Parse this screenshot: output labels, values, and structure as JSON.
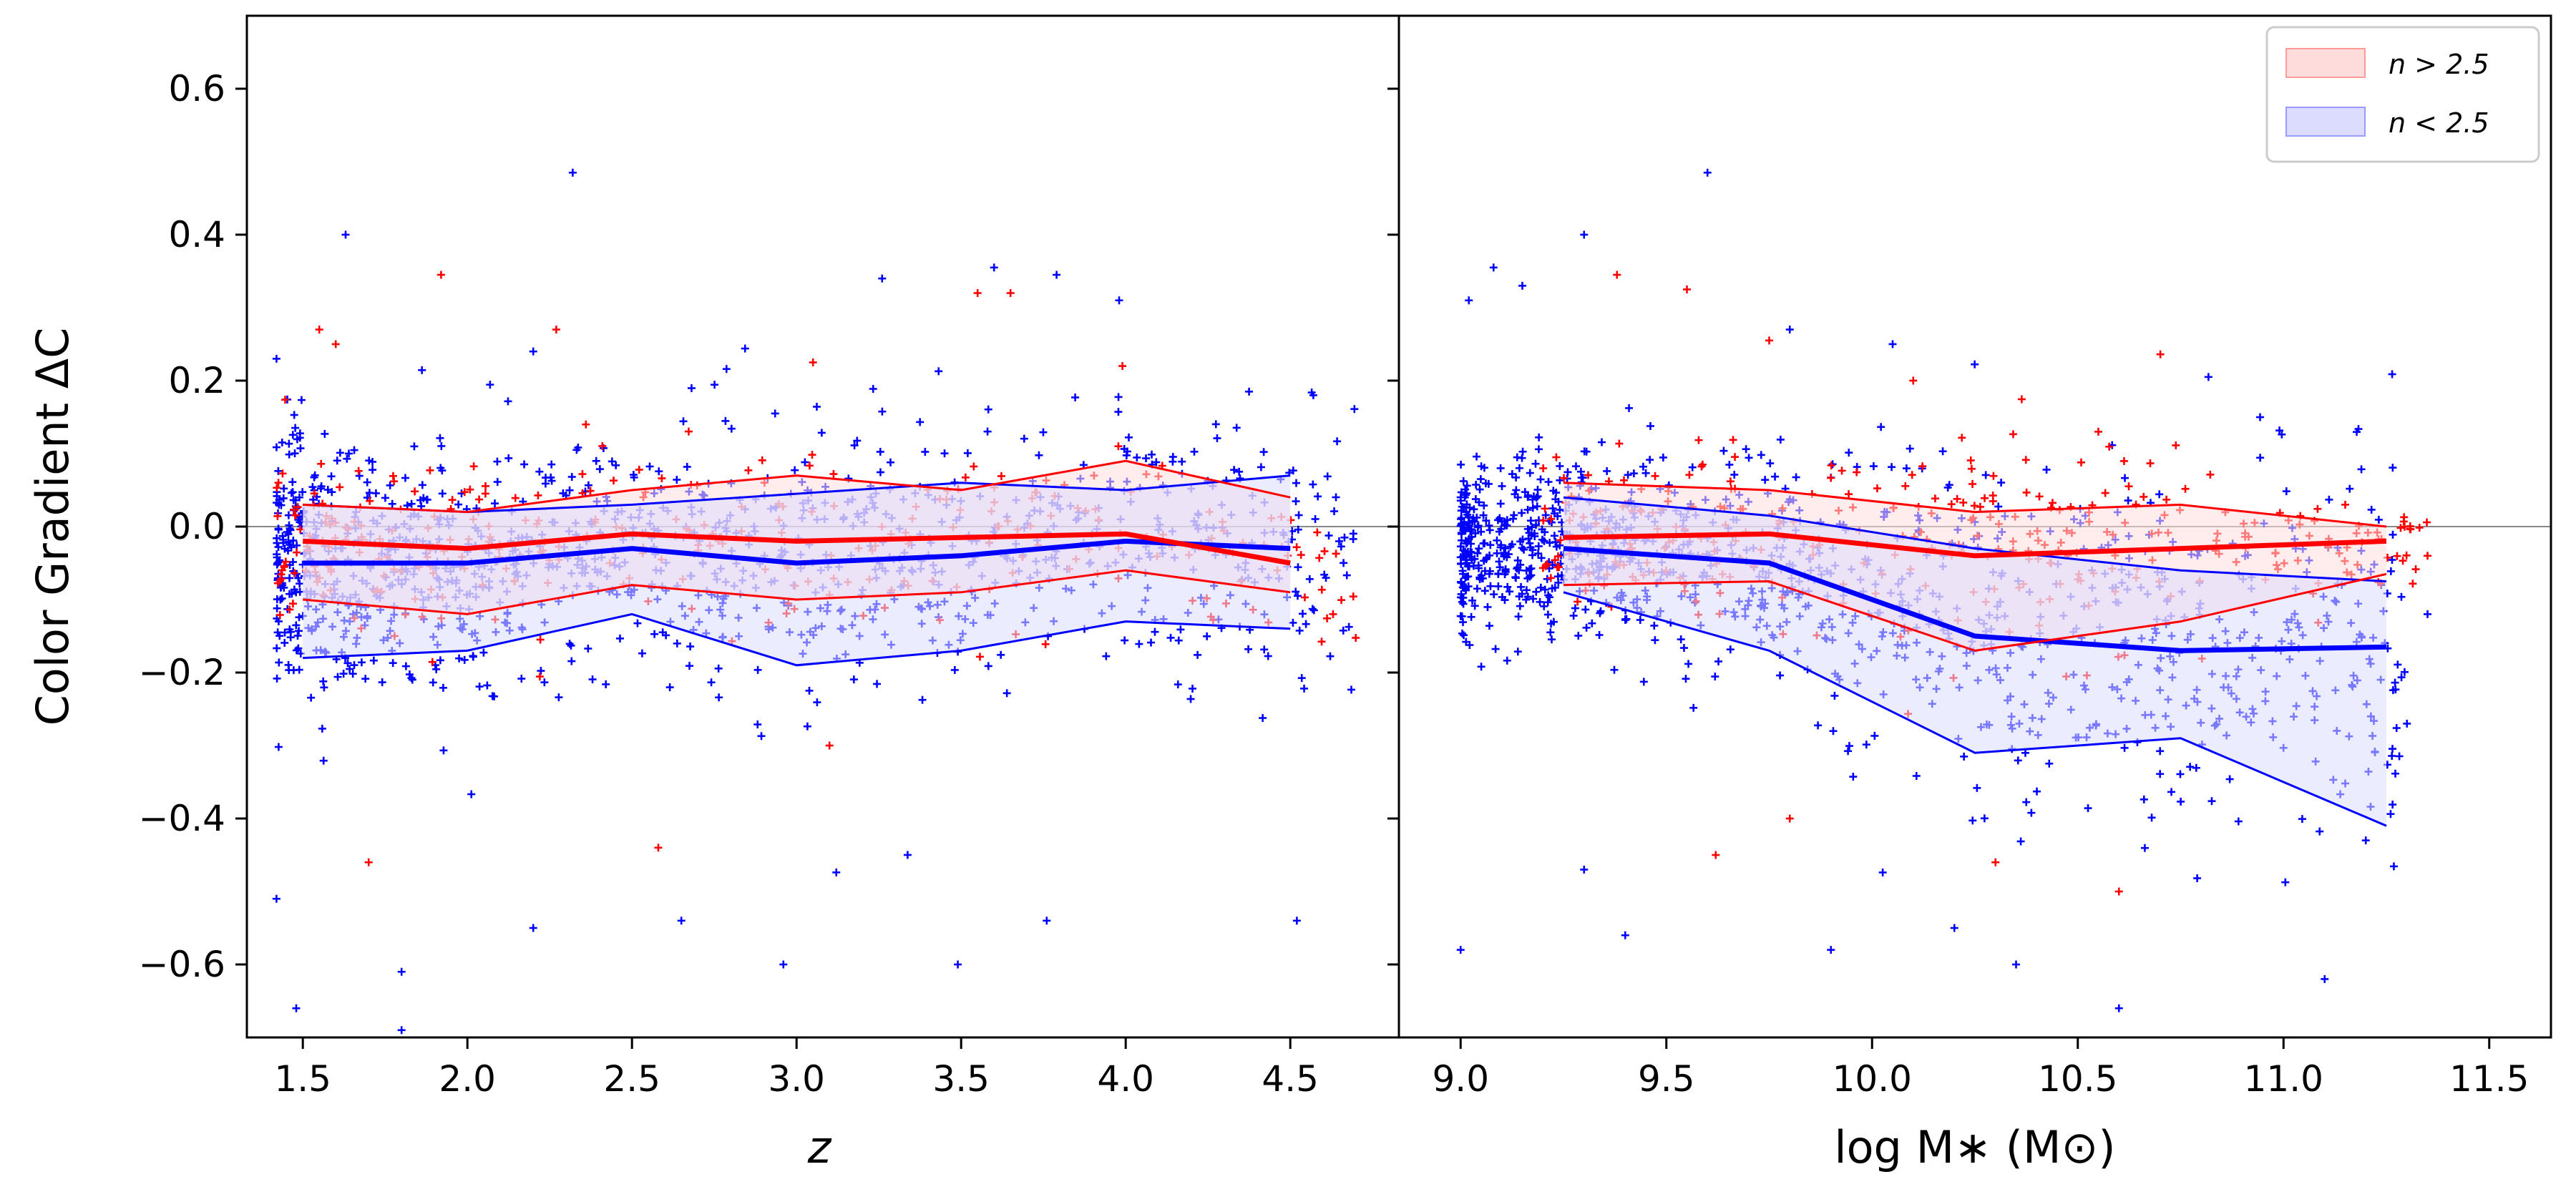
{
  "chart_data": [
    {
      "type": "scatter",
      "panel": "left",
      "xlabel": "z",
      "ylabel": "Color Gradient ΔC",
      "xlim": [
        1.33,
        4.83
      ],
      "ylim": [
        -0.7,
        0.7
      ],
      "xticks": [
        1.5,
        2.0,
        2.5,
        3.0,
        3.5,
        4.0,
        4.5
      ],
      "xtick_labels": [
        "1.5",
        "2.0",
        "2.5",
        "3.0",
        "3.5",
        "4.0",
        "4.5"
      ],
      "yticks": [
        0.6,
        0.4,
        0.2,
        0.0,
        -0.2,
        -0.4,
        -0.6
      ],
      "ytick_labels": [
        "0.6",
        "0.4",
        "0.2",
        "0.0",
        "−0.2",
        "−0.4",
        "−0.6"
      ],
      "reference_line_y": 0,
      "series": [
        {
          "name": "n > 2.5",
          "color": "#ff0000",
          "band_fill": "#ffdcdc",
          "x": [
            1.5,
            2.0,
            2.5,
            3.0,
            3.5,
            4.0,
            4.5
          ],
          "median": [
            -0.02,
            -0.03,
            -0.01,
            -0.02,
            -0.015,
            -0.01,
            -0.05
          ],
          "lower": [
            -0.1,
            -0.12,
            -0.08,
            -0.1,
            -0.09,
            -0.06,
            -0.09
          ],
          "upper": [
            0.03,
            0.02,
            0.05,
            0.07,
            0.05,
            0.09,
            0.04
          ]
        },
        {
          "name": "n < 2.5",
          "color": "#0000ff",
          "band_fill": "#dcdcff",
          "x": [
            1.5,
            2.0,
            2.5,
            3.0,
            3.5,
            4.0,
            4.5
          ],
          "median": [
            -0.05,
            -0.05,
            -0.03,
            -0.05,
            -0.04,
            -0.02,
            -0.03
          ],
          "lower": [
            -0.18,
            -0.17,
            -0.12,
            -0.19,
            -0.17,
            -0.13,
            -0.14
          ],
          "upper": [
            0.03,
            0.02,
            0.03,
            0.045,
            0.06,
            0.05,
            0.07
          ]
        }
      ],
      "outliers": {
        "red": [
          [
            1.55,
            0.27
          ],
          [
            1.6,
            0.25
          ],
          [
            1.92,
            0.345
          ],
          [
            2.27,
            0.27
          ],
          [
            2.36,
            0.14
          ],
          [
            3.05,
            0.225
          ],
          [
            3.55,
            0.32
          ],
          [
            3.65,
            0.32
          ],
          [
            3.99,
            0.22
          ],
          [
            1.7,
            -0.46
          ],
          [
            2.58,
            -0.44
          ],
          [
            3.1,
            -0.3
          ],
          [
            4.63,
            -0.12
          ]
        ],
        "blue": [
          [
            1.63,
            0.4
          ],
          [
            2.32,
            0.485
          ],
          [
            3.6,
            0.355
          ],
          [
            3.79,
            0.345
          ],
          [
            3.98,
            0.31
          ],
          [
            3.26,
            0.34
          ],
          [
            4.57,
            0.18
          ],
          [
            1.42,
            0.23
          ],
          [
            2.2,
            0.24
          ],
          [
            1.48,
            -0.66
          ],
          [
            1.8,
            -0.69
          ],
          [
            1.8,
            -0.61
          ],
          [
            3.49,
            -0.6
          ],
          [
            2.96,
            -0.6
          ],
          [
            4.52,
            -0.54
          ],
          [
            3.76,
            -0.54
          ],
          [
            1.42,
            -0.51
          ],
          [
            2.65,
            -0.54
          ],
          [
            2.2,
            -0.55
          ]
        ]
      }
    },
    {
      "type": "scatter",
      "panel": "right",
      "xlabel": "log M∗ (M⊙)",
      "ylabel": "",
      "xlim": [
        8.85,
        11.65
      ],
      "ylim": [
        -0.7,
        0.7
      ],
      "xticks": [
        9.0,
        9.5,
        10.0,
        10.5,
        11.0,
        11.5
      ],
      "xtick_labels": [
        "9.0",
        "9.5",
        "10.0",
        "10.5",
        "11.0",
        "11.5"
      ],
      "reference_line_y": 0,
      "legend_position": "top-right",
      "series": [
        {
          "name": "n > 2.5",
          "color": "#ff0000",
          "band_fill": "#ffdcdc",
          "x": [
            9.25,
            9.75,
            10.25,
            10.75,
            11.25
          ],
          "median": [
            -0.015,
            -0.01,
            -0.04,
            -0.03,
            -0.02
          ],
          "lower": [
            -0.08,
            -0.075,
            -0.17,
            -0.13,
            -0.065
          ],
          "upper": [
            0.06,
            0.05,
            0.02,
            0.03,
            0.0
          ]
        },
        {
          "name": "n < 2.5",
          "color": "#0000ff",
          "band_fill": "#dcdcff",
          "x": [
            9.25,
            9.75,
            10.25,
            10.75,
            11.25
          ],
          "median": [
            -0.03,
            -0.05,
            -0.15,
            -0.17,
            -0.165
          ],
          "lower": [
            -0.09,
            -0.17,
            -0.31,
            -0.29,
            -0.41
          ],
          "upper": [
            0.04,
            0.015,
            -0.03,
            -0.06,
            -0.075
          ]
        }
      ],
      "outliers": {
        "red": [
          [
            9.38,
            0.345
          ],
          [
            9.55,
            0.325
          ],
          [
            9.75,
            0.255
          ],
          [
            10.1,
            0.2
          ],
          [
            10.55,
            0.13
          ],
          [
            11.15,
            0.03
          ],
          [
            11.35,
            -0.04
          ],
          [
            10.3,
            -0.46
          ],
          [
            10.6,
            -0.5
          ],
          [
            9.62,
            -0.45
          ],
          [
            9.8,
            -0.4
          ]
        ],
        "blue": [
          [
            9.6,
            0.485
          ],
          [
            9.3,
            0.4
          ],
          [
            9.08,
            0.355
          ],
          [
            9.15,
            0.33
          ],
          [
            9.02,
            0.31
          ],
          [
            9.8,
            0.27
          ],
          [
            10.05,
            0.25
          ],
          [
            9.0,
            -0.58
          ],
          [
            9.3,
            -0.47
          ],
          [
            9.4,
            -0.56
          ],
          [
            10.35,
            -0.6
          ],
          [
            10.6,
            -0.66
          ],
          [
            11.1,
            -0.62
          ],
          [
            9.9,
            -0.58
          ],
          [
            11.2,
            -0.43
          ],
          [
            11.3,
            -0.27
          ],
          [
            11.35,
            -0.12
          ],
          [
            10.2,
            -0.55
          ]
        ]
      }
    }
  ],
  "legend": {
    "items": [
      {
        "label": "n > 2.5",
        "fill": "#ffdcdc",
        "edge": "#ff9a9a"
      },
      {
        "label": "n < 2.5",
        "fill": "#dcdcff",
        "edge": "#9a9aff"
      }
    ]
  }
}
